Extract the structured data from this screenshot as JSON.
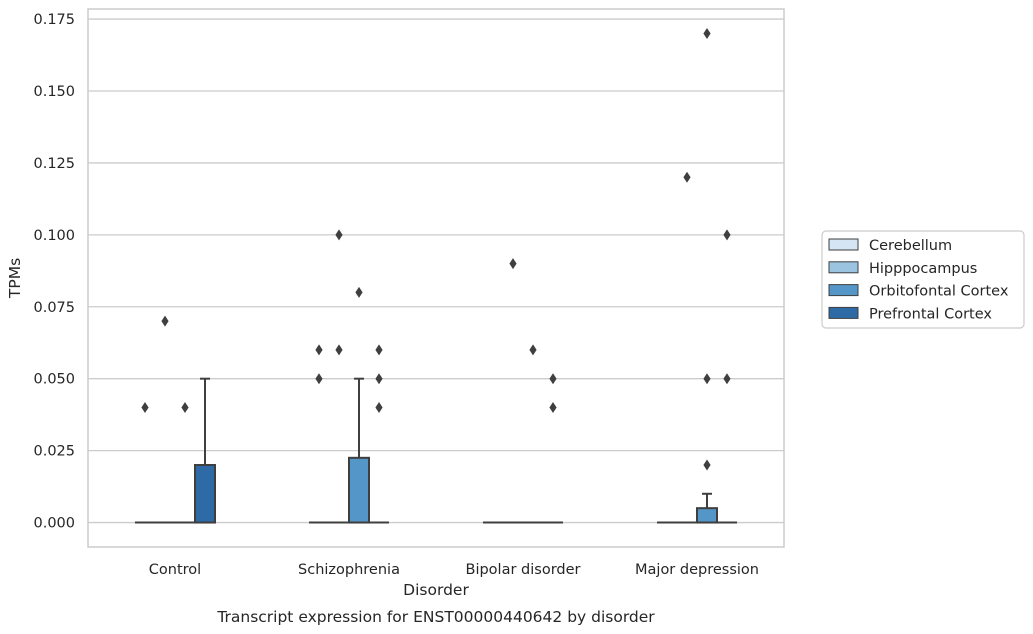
{
  "chart_data": {
    "type": "box",
    "xlabel": "Disorder",
    "ylabel": "TPMs",
    "caption": "Transcript expression for ENST00000440642 by disorder",
    "categories": [
      "Control",
      "Schizophrenia",
      "Bipolar disorder",
      "Major depression"
    ],
    "ylim": [
      -0.0085,
      0.1785
    ],
    "yticks": [
      "0.000",
      "0.025",
      "0.050",
      "0.075",
      "0.100",
      "0.125",
      "0.150",
      "0.175"
    ],
    "grid": true,
    "legend_position": "right",
    "series": [
      {
        "name": "Cerebellum",
        "color": "#d6e5f3",
        "boxes": [
          {
            "q1": 0,
            "median": 0,
            "q3": 0,
            "whisker_low": 0,
            "whisker_high": 0,
            "outliers": [
              0.04
            ]
          },
          {
            "q1": 0,
            "median": 0,
            "q3": 0,
            "whisker_low": 0,
            "whisker_high": 0,
            "outliers": [
              0.05,
              0.06
            ]
          },
          {
            "q1": 0,
            "median": 0,
            "q3": 0,
            "whisker_low": 0,
            "whisker_high": 0,
            "outliers": []
          },
          {
            "q1": 0,
            "median": 0,
            "q3": 0,
            "whisker_low": 0,
            "whisker_high": 0,
            "outliers": []
          }
        ]
      },
      {
        "name": "Hipppocampus",
        "color": "#9ac4e0",
        "boxes": [
          {
            "q1": 0,
            "median": 0,
            "q3": 0,
            "whisker_low": 0,
            "whisker_high": 0,
            "outliers": [
              0.07
            ]
          },
          {
            "q1": 0,
            "median": 0,
            "q3": 0,
            "whisker_low": 0,
            "whisker_high": 0,
            "outliers": [
              0.06,
              0.1
            ]
          },
          {
            "q1": 0,
            "median": 0,
            "q3": 0,
            "whisker_low": 0,
            "whisker_high": 0,
            "outliers": [
              0.09
            ]
          },
          {
            "q1": 0,
            "median": 0,
            "q3": 0,
            "whisker_low": 0,
            "whisker_high": 0,
            "outliers": [
              0.12
            ]
          }
        ]
      },
      {
        "name": "Orbitofontal Cortex",
        "color": "#5596c8",
        "boxes": [
          {
            "q1": 0,
            "median": 0,
            "q3": 0,
            "whisker_low": 0,
            "whisker_high": 0,
            "outliers": [
              0.04
            ]
          },
          {
            "q1": 0,
            "median": 0,
            "q3": 0.0225,
            "whisker_low": 0,
            "whisker_high": 0.05,
            "outliers": [
              0.08
            ]
          },
          {
            "q1": 0,
            "median": 0,
            "q3": 0,
            "whisker_low": 0,
            "whisker_high": 0,
            "outliers": [
              0.06
            ]
          },
          {
            "q1": 0,
            "median": 0,
            "q3": 0.005,
            "whisker_low": 0,
            "whisker_high": 0.01,
            "outliers": [
              0.02,
              0.05,
              0.17
            ]
          }
        ]
      },
      {
        "name": "Prefrontal Cortex",
        "color": "#2e6aa6",
        "boxes": [
          {
            "q1": 0,
            "median": 0,
            "q3": 0.02,
            "whisker_low": 0,
            "whisker_high": 0.05,
            "outliers": []
          },
          {
            "q1": 0,
            "median": 0,
            "q3": 0,
            "whisker_low": 0,
            "whisker_high": 0,
            "outliers": [
              0.04,
              0.05,
              0.06
            ]
          },
          {
            "q1": 0,
            "median": 0,
            "q3": 0,
            "whisker_low": 0,
            "whisker_high": 0,
            "outliers": [
              0.04,
              0.05
            ]
          },
          {
            "q1": 0,
            "median": 0,
            "q3": 0,
            "whisker_low": 0,
            "whisker_high": 0,
            "outliers": [
              0.05,
              0.1
            ]
          }
        ]
      }
    ]
  }
}
